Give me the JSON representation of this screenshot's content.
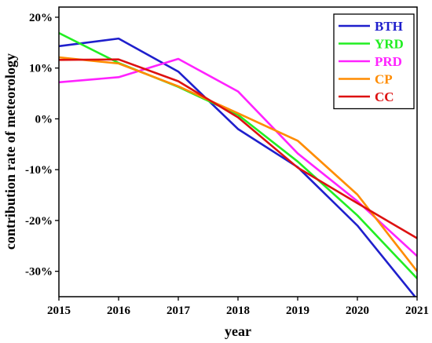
{
  "chart_data": {
    "type": "line",
    "xlabel": "year",
    "ylabel": "contribution rate of meteorology",
    "x": [
      "2015",
      "2016",
      "2017",
      "2018",
      "2019",
      "2020",
      "2021"
    ],
    "xlim": [
      2015,
      2021
    ],
    "ylim": [
      -35,
      22
    ],
    "yticks": [
      -30,
      -20,
      -10,
      0,
      10,
      20
    ],
    "ytick_labels": [
      "-30%",
      "-20%",
      "-10%",
      "0%",
      "10%",
      "20%"
    ],
    "grid": false,
    "legend_position": "top-right",
    "series": [
      {
        "name": "BTH",
        "color": "#1f1fcc",
        "values": [
          14.3,
          15.8,
          9.3,
          -2.0,
          -9.5,
          -21.0,
          -35.5
        ]
      },
      {
        "name": "YRD",
        "color": "#22ee22",
        "values": [
          16.9,
          11.0,
          6.3,
          0.8,
          -8.4,
          -19.0,
          -31.4
        ]
      },
      {
        "name": "PRD",
        "color": "#ff22ff",
        "values": [
          7.2,
          8.2,
          11.8,
          5.4,
          -6.8,
          -16.2,
          -27.0
        ]
      },
      {
        "name": "CP",
        "color": "#ff8c00",
        "values": [
          12.1,
          10.9,
          6.4,
          1.1,
          -4.3,
          -14.9,
          -30.0
        ]
      },
      {
        "name": "CC",
        "color": "#dd1111",
        "values": [
          11.6,
          11.7,
          7.4,
          0.3,
          -9.6,
          -16.6,
          -23.5
        ]
      }
    ]
  }
}
